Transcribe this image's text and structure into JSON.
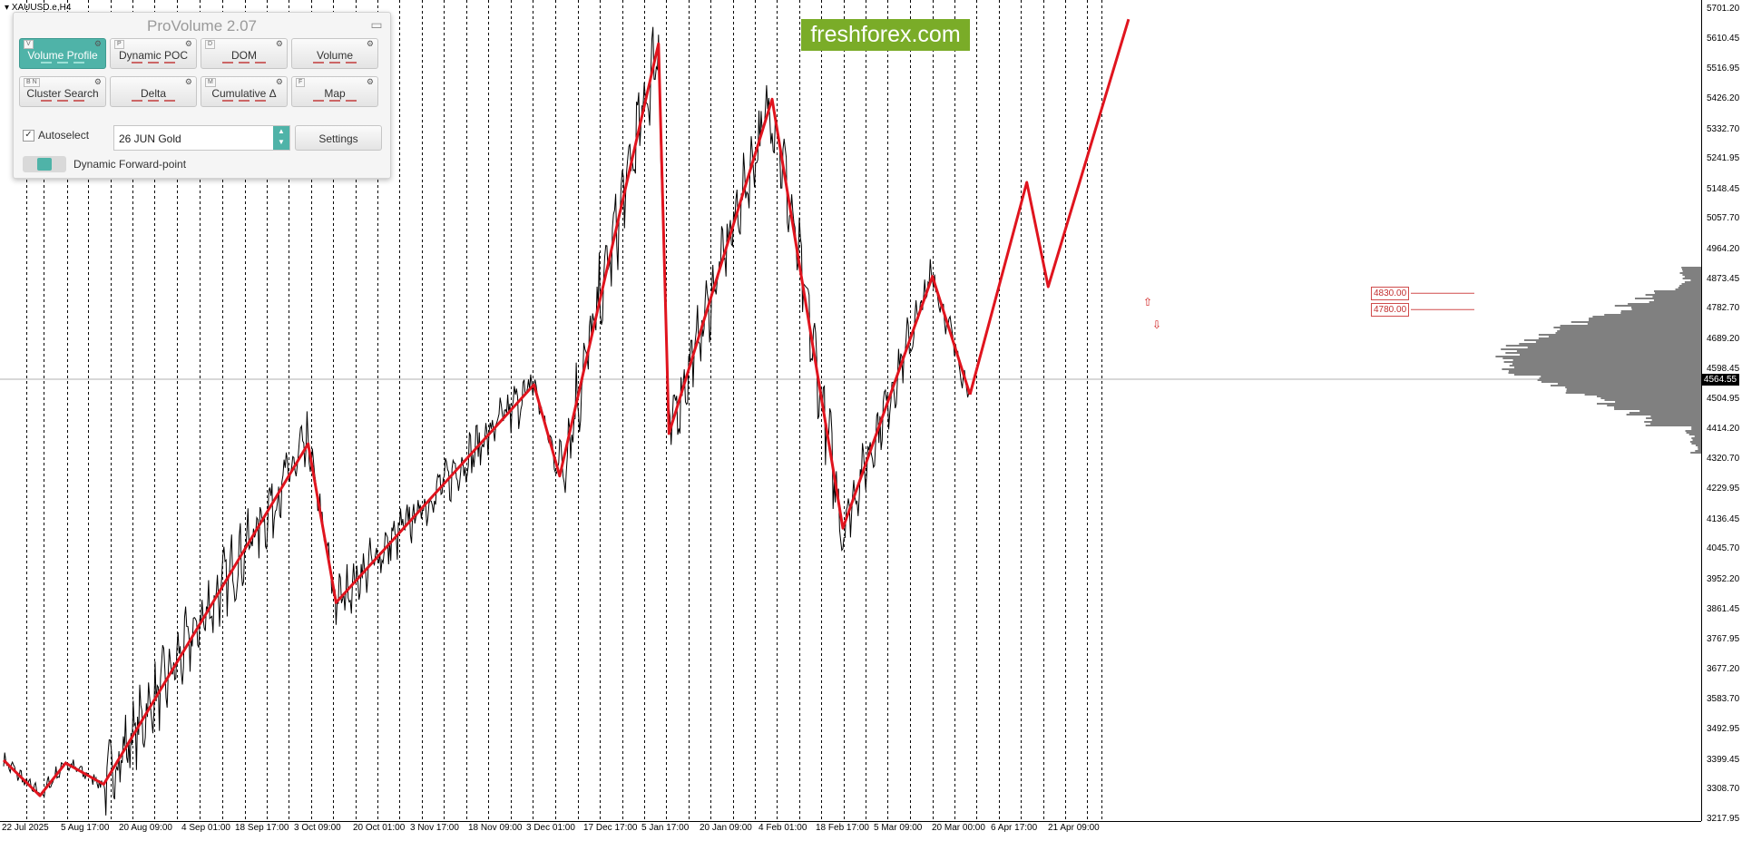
{
  "chart": {
    "symbol": "XAUUSD.e,H4",
    "watermark": "freshforex.com",
    "current_price": "4564.55",
    "price_ticks": [
      "5701.20",
      "5610.45",
      "5516.95",
      "5426.20",
      "5332.70",
      "5241.95",
      "5148.45",
      "5057.70",
      "4964.20",
      "4873.45",
      "4782.70",
      "4689.20",
      "4598.45",
      "4504.95",
      "4414.20",
      "4320.70",
      "4229.95",
      "4136.45",
      "4045.70",
      "3952.20",
      "3861.45",
      "3767.95",
      "3677.20",
      "3583.70",
      "3492.95",
      "3399.45",
      "3308.70",
      "3217.95"
    ],
    "time_ticks": [
      "22 Jul 2025",
      "5 Aug 17:00",
      "20 Aug 09:00",
      "4 Sep 01:00",
      "18 Sep 17:00",
      "3 Oct 09:00",
      "20 Oct 01:00",
      "3 Nov 17:00",
      "18 Nov 09:00",
      "3 Dec 01:00",
      "17 Dec 17:00",
      "5 Jan 17:00",
      "20 Jan 09:00",
      "4 Feb 01:00",
      "18 Feb 17:00",
      "5 Mar 09:00",
      "20 Mar 00:00",
      "6 Apr 17:00",
      "21 Apr 09:00"
    ],
    "levels": [
      {
        "label": "4830.00",
        "price": 4830
      },
      {
        "label": "4780.00",
        "price": 4780
      }
    ],
    "zigzag": [
      {
        "t": 0.0,
        "p": 3399
      },
      {
        "t": 8.3,
        "p": 3290
      },
      {
        "t": 14.2,
        "p": 3390
      },
      {
        "t": 22.9,
        "p": 3325
      },
      {
        "t": 69.7,
        "p": 4369
      },
      {
        "t": 76.1,
        "p": 3882
      },
      {
        "t": 121.4,
        "p": 4550
      },
      {
        "t": 127.3,
        "p": 4270
      },
      {
        "t": 149.9,
        "p": 5595
      },
      {
        "t": 152.3,
        "p": 4400
      },
      {
        "t": 175.9,
        "p": 5425
      },
      {
        "t": 192.1,
        "p": 4110
      },
      {
        "t": 212.6,
        "p": 4882
      },
      {
        "t": 221.2,
        "p": 4520
      }
    ],
    "forecast": [
      {
        "t": 221.2,
        "p": 4520
      },
      {
        "t": 234.2,
        "p": 5170
      },
      {
        "t": 239.1,
        "p": 4850
      },
      {
        "t": 257.5,
        "p": 5670
      }
    ],
    "price_series_color": "#000000",
    "zigzag_color": "#e0141e",
    "profile_color": "#808080"
  },
  "panel": {
    "title": "ProVolume 2.07",
    "minimize_icon": "minimize-icon",
    "buttons": [
      {
        "label": "Volume Profile",
        "key": "V",
        "active": true
      },
      {
        "label": "Dynamic POC",
        "key": "P",
        "active": false
      },
      {
        "label": "DOM",
        "key": "D",
        "active": false
      },
      {
        "label": "Volume",
        "key": "",
        "active": false
      },
      {
        "label": "Cluster Search",
        "key": "B N",
        "active": false
      },
      {
        "label": "Delta",
        "key": "",
        "active": false
      },
      {
        "label": "Cumulative Δ",
        "key": "M",
        "active": false
      },
      {
        "label": "Map",
        "key": "F",
        "active": false
      }
    ],
    "autoselect_label": "Autoselect",
    "contract_value": "26 JUN Gold",
    "settings_label": "Settings",
    "dynamic_label": "Dynamic Forward-point"
  }
}
